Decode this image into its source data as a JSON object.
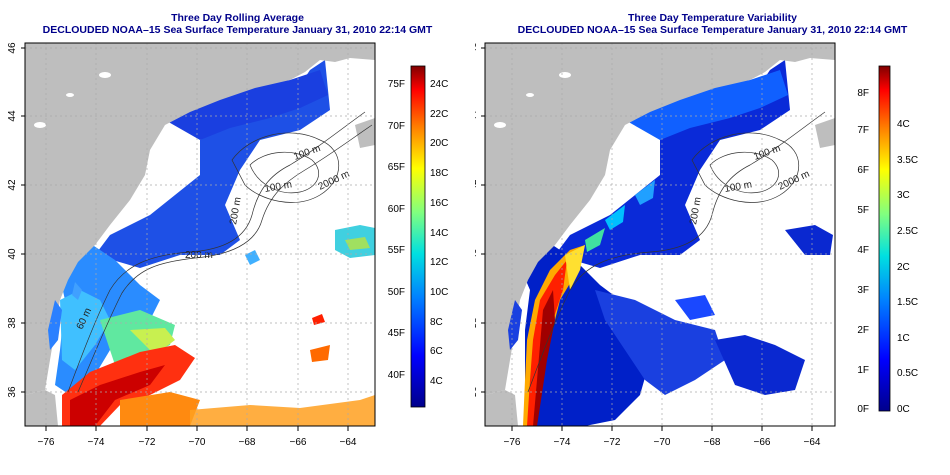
{
  "panels": [
    {
      "title": "Three Day Rolling Average",
      "subtitle": "DECLOUDED NOAA–15 Sea Surface Temperature January 31, 2010 22:14 GMT",
      "colorbar_left": [
        "75F",
        "70F",
        "65F",
        "60F",
        "55F",
        "50F",
        "45F",
        "40F"
      ],
      "colorbar_right": [
        "24C",
        "22C",
        "20C",
        "18C",
        "16C",
        "14C",
        "12C",
        "10C",
        "8C",
        "6C",
        "4C"
      ],
      "contours": [
        "100 m",
        "2000 m",
        "100 m",
        "200 m",
        "60 m",
        "60 m",
        "200 m"
      ]
    },
    {
      "title": "Three Day Temperature Variability",
      "subtitle": "DECLOUDED NOAA–15 Sea Surface Temperature January 31, 2010 22:14 GMT",
      "colorbar_left": [
        "8F",
        "7F",
        "6F",
        "5F",
        "4F",
        "3F",
        "2F",
        "1F",
        "0F"
      ],
      "colorbar_right": [
        "4C",
        "3.5C",
        "3C",
        "2.5C",
        "2C",
        "1.5C",
        "1C",
        "0.5C",
        "0C"
      ],
      "contours": [
        "100 m",
        "2000 m",
        "100 m",
        "200 m"
      ]
    }
  ],
  "axes": {
    "lat_ticks": [
      "46",
      "44",
      "42",
      "40",
      "38",
      "36"
    ],
    "lon_ticks": [
      "−76",
      "−74",
      "−72",
      "−70",
      "−68",
      "−66",
      "−64"
    ]
  },
  "colors": {
    "title": "#00008b",
    "land": "#bebebe",
    "no_data": "#ffffff",
    "contour": "#333333"
  }
}
